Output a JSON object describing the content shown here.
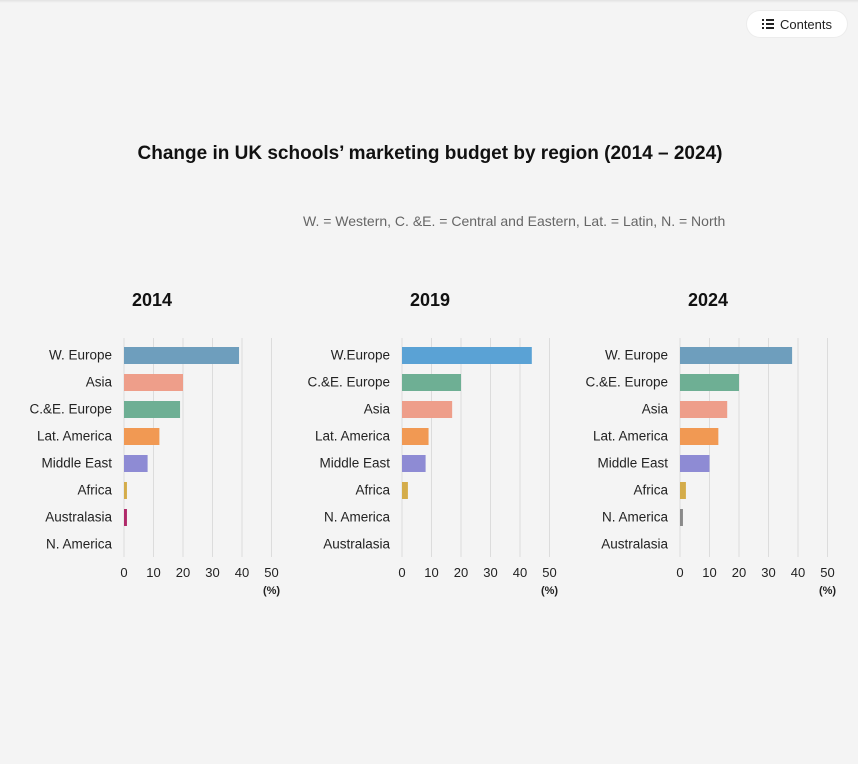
{
  "header": {
    "contents_label": "Contents"
  },
  "page": {
    "title": "Change in UK schools’ marketing budget by region (2014 – 2024)",
    "abbreviations": "W. = Western,  C. &E. = Central and Eastern,  Lat. = Latin,  N. = North"
  },
  "chart_data": [
    {
      "type": "bar",
      "orientation": "horizontal",
      "title": "2014",
      "xlabel": "(%)",
      "xlim": [
        0,
        50
      ],
      "xticks": [
        0,
        10,
        20,
        30,
        40,
        50
      ],
      "grid": true,
      "categories": [
        "W. Europe",
        "Asia",
        "C.&E. Europe",
        "Lat. America",
        "Middle East",
        "Africa",
        "Australasia",
        "N. America"
      ],
      "values": [
        39,
        20,
        19,
        12,
        8,
        1,
        1,
        0
      ],
      "colors": [
        "#6e9ebd",
        "#ee9e8a",
        "#6eaf94",
        "#f19953",
        "#8e8bd4",
        "#d4ac4a",
        "#b02a6a",
        "#999999"
      ]
    },
    {
      "type": "bar",
      "orientation": "horizontal",
      "title": "2019",
      "xlabel": "(%)",
      "xlim": [
        0,
        50
      ],
      "xticks": [
        0,
        10,
        20,
        30,
        40,
        50
      ],
      "grid": true,
      "categories": [
        "W.Europe",
        "C.&E. Europe",
        "Asia",
        "Lat. America",
        "Middle East",
        "Africa",
        "N. America",
        "Australasia"
      ],
      "values": [
        44,
        20,
        17,
        9,
        8,
        2,
        0,
        0
      ],
      "colors": [
        "#5aa2d5",
        "#6eaf94",
        "#ee9e8a",
        "#f19953",
        "#8e8bd4",
        "#d4ac4a",
        "#999999",
        "#b02a6a"
      ]
    },
    {
      "type": "bar",
      "orientation": "horizontal",
      "title": "2024",
      "xlabel": "(%)",
      "xlim": [
        0,
        50
      ],
      "xticks": [
        0,
        10,
        20,
        30,
        40,
        50
      ],
      "grid": true,
      "categories": [
        "W. Europe",
        "C.&E. Europe",
        "Asia",
        "Lat. America",
        "Middle East",
        "Africa",
        "N. America",
        "Australasia"
      ],
      "values": [
        38,
        20,
        16,
        13,
        10,
        2,
        1,
        0
      ],
      "colors": [
        "#6e9ebd",
        "#6eaf94",
        "#ee9e8a",
        "#f19953",
        "#8e8bd4",
        "#d4ac4a",
        "#8a8a8a",
        "#b02a6a"
      ]
    }
  ]
}
